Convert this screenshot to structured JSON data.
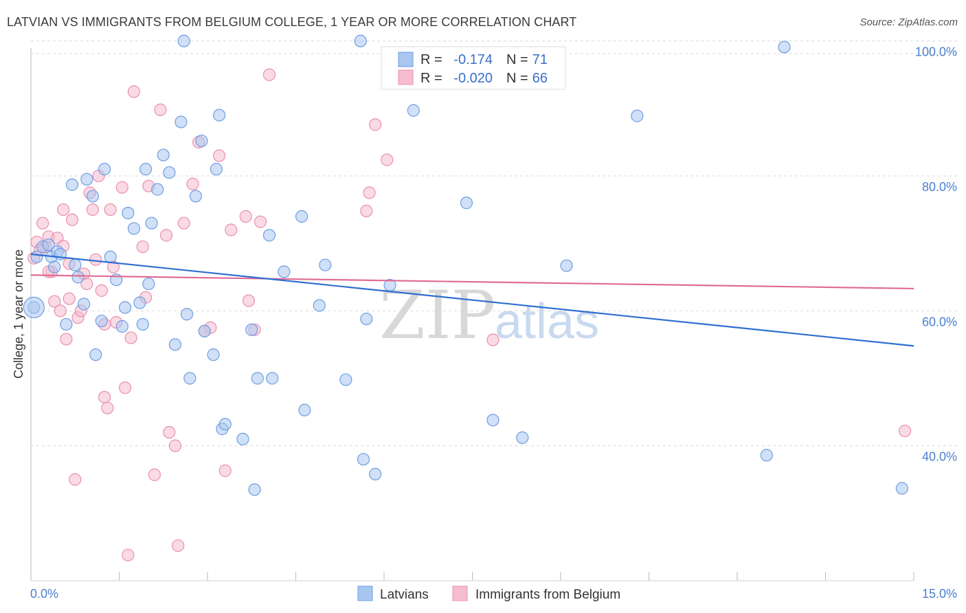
{
  "header": {
    "title": "LATVIAN VS IMMIGRANTS FROM BELGIUM COLLEGE, 1 YEAR OR MORE CORRELATION CHART",
    "source": "Source: ZipAtlas.com"
  },
  "watermark": {
    "part1": "ZIP",
    "part2": "atlas"
  },
  "colors": {
    "latvians_fill": "#a9c6f0",
    "latvians_stroke": "#6f9ee0",
    "latvians_line": "#2f6fd0",
    "belgium_fill": "#f6bcd0",
    "belgium_stroke": "#e98fae",
    "belgium_line": "#e06b95",
    "tick_text": "#4a7fd0"
  },
  "legend": {
    "rows": [
      {
        "r_label": "R =",
        "r_value": "-0.174",
        "n_label": "N =",
        "n_value": "71"
      },
      {
        "r_label": "R =",
        "r_value": "-0.020",
        "n_label": "N =",
        "n_value": "66"
      }
    ]
  },
  "bottom_legend": {
    "series1": "Latvians",
    "series2": "Immigrants from Belgium"
  },
  "chart_data": {
    "type": "scatter",
    "title": "LATVIAN VS IMMIGRANTS FROM BELGIUM COLLEGE, 1 YEAR OR MORE CORRELATION CHART",
    "xlabel": "",
    "ylabel": "College, 1 year or more",
    "xlim": [
      0,
      15
    ],
    "ylim": [
      20,
      102
    ],
    "x_tick_labels": [
      "0.0%",
      "15.0%"
    ],
    "y_ticks": [
      40,
      60,
      80,
      100
    ],
    "y_tick_labels": [
      "40.0%",
      "60.0%",
      "80.0%",
      "100.0%"
    ],
    "grid": "horizontal dashed",
    "legend_position": "top-center",
    "series": [
      {
        "name": "Latvians",
        "r": -0.174,
        "n": 71,
        "trend": {
          "x": [
            0,
            15
          ],
          "y": [
            68.4,
            54.8
          ]
        },
        "points": [
          [
            0.05,
            60.5
          ],
          [
            0.1,
            68.0
          ],
          [
            0.2,
            69.5
          ],
          [
            0.3,
            69.8
          ],
          [
            0.35,
            68.0
          ],
          [
            0.4,
            66.5
          ],
          [
            0.45,
            68.8
          ],
          [
            0.5,
            68.4
          ],
          [
            0.7,
            78.7
          ],
          [
            0.75,
            66.8
          ],
          [
            0.8,
            65.0
          ],
          [
            0.9,
            61.0
          ],
          [
            0.95,
            79.5
          ],
          [
            1.05,
            77.0
          ],
          [
            1.1,
            53.5
          ],
          [
            1.2,
            58.5
          ],
          [
            1.25,
            81.0
          ],
          [
            1.35,
            68.0
          ],
          [
            1.45,
            64.6
          ],
          [
            1.55,
            57.7
          ],
          [
            1.6,
            60.5
          ],
          [
            1.65,
            74.5
          ],
          [
            1.75,
            72.2
          ],
          [
            1.85,
            61.2
          ],
          [
            1.9,
            58.0
          ],
          [
            1.95,
            81.0
          ],
          [
            2.05,
            73.0
          ],
          [
            2.15,
            78.0
          ],
          [
            2.25,
            83.1
          ],
          [
            2.35,
            80.5
          ],
          [
            2.45,
            55.0
          ],
          [
            2.55,
            88.0
          ],
          [
            2.65,
            59.5
          ],
          [
            2.7,
            50.0
          ],
          [
            2.6,
            100.0
          ],
          [
            2.8,
            77.0
          ],
          [
            2.9,
            85.2
          ],
          [
            2.95,
            57.0
          ],
          [
            3.1,
            53.5
          ],
          [
            3.15,
            81.0
          ],
          [
            3.2,
            89.0
          ],
          [
            3.25,
            42.5
          ],
          [
            3.3,
            43.2
          ],
          [
            3.6,
            41.0
          ],
          [
            3.75,
            57.2
          ],
          [
            3.8,
            33.5
          ],
          [
            3.85,
            50.0
          ],
          [
            4.05,
            71.2
          ],
          [
            4.1,
            50.0
          ],
          [
            4.3,
            65.8
          ],
          [
            4.6,
            74.0
          ],
          [
            4.65,
            45.3
          ],
          [
            4.9,
            60.8
          ],
          [
            5.0,
            66.8
          ],
          [
            5.35,
            49.8
          ],
          [
            5.65,
            38.0
          ],
          [
            5.6,
            100.0
          ],
          [
            5.7,
            58.8
          ],
          [
            5.85,
            35.8
          ],
          [
            6.1,
            63.8
          ],
          [
            6.5,
            89.7
          ],
          [
            7.4,
            76.0
          ],
          [
            7.85,
            43.8
          ],
          [
            8.35,
            41.2
          ],
          [
            9.1,
            66.7
          ],
          [
            10.3,
            88.9
          ],
          [
            12.5,
            38.6
          ],
          [
            12.8,
            99.1
          ],
          [
            14.8,
            33.7
          ],
          [
            0.6,
            58.0
          ],
          [
            2.0,
            64.0
          ]
        ]
      },
      {
        "name": "Immigrants from Belgium",
        "r": -0.02,
        "n": 66,
        "trend": {
          "x": [
            0,
            15
          ],
          "y": [
            65.3,
            63.3
          ]
        },
        "points": [
          [
            0.05,
            67.8
          ],
          [
            0.1,
            70.2
          ],
          [
            0.2,
            73.0
          ],
          [
            0.25,
            69.5
          ],
          [
            0.3,
            71.0
          ],
          [
            0.35,
            65.8
          ],
          [
            0.4,
            61.4
          ],
          [
            0.45,
            70.8
          ],
          [
            0.5,
            60.0
          ],
          [
            0.55,
            75.0
          ],
          [
            0.6,
            55.8
          ],
          [
            0.65,
            61.8
          ],
          [
            0.7,
            73.5
          ],
          [
            0.75,
            35.0
          ],
          [
            0.8,
            59.0
          ],
          [
            0.85,
            60.0
          ],
          [
            0.9,
            65.5
          ],
          [
            0.95,
            64.0
          ],
          [
            1.0,
            77.5
          ],
          [
            1.05,
            75.0
          ],
          [
            1.1,
            67.6
          ],
          [
            1.15,
            80.0
          ],
          [
            1.2,
            63.0
          ],
          [
            1.25,
            47.2
          ],
          [
            1.3,
            45.6
          ],
          [
            1.35,
            75.0
          ],
          [
            1.4,
            66.5
          ],
          [
            1.55,
            78.3
          ],
          [
            1.6,
            48.6
          ],
          [
            1.65,
            23.8
          ],
          [
            1.7,
            56.0
          ],
          [
            1.75,
            92.5
          ],
          [
            1.9,
            69.5
          ],
          [
            1.95,
            62.0
          ],
          [
            2.0,
            78.5
          ],
          [
            2.1,
            35.7
          ],
          [
            2.2,
            89.8
          ],
          [
            2.3,
            71.2
          ],
          [
            2.35,
            42.0
          ],
          [
            2.45,
            40.0
          ],
          [
            2.5,
            25.2
          ],
          [
            2.6,
            73.0
          ],
          [
            2.75,
            78.8
          ],
          [
            2.85,
            85.0
          ],
          [
            3.05,
            57.5
          ],
          [
            3.2,
            83.0
          ],
          [
            3.3,
            36.3
          ],
          [
            3.4,
            72.0
          ],
          [
            3.65,
            74.0
          ],
          [
            3.7,
            61.5
          ],
          [
            3.8,
            57.2
          ],
          [
            3.9,
            73.2
          ],
          [
            4.05,
            95.0
          ],
          [
            5.7,
            74.8
          ],
          [
            5.75,
            77.5
          ],
          [
            5.85,
            87.6
          ],
          [
            6.05,
            82.4
          ],
          [
            7.85,
            55.7
          ],
          [
            14.85,
            42.2
          ],
          [
            0.15,
            69.0
          ],
          [
            0.55,
            69.6
          ],
          [
            1.45,
            58.3
          ],
          [
            0.65,
            67.0
          ],
          [
            1.25,
            58.0
          ],
          [
            2.95,
            57.0
          ],
          [
            0.3,
            65.8
          ]
        ]
      }
    ]
  }
}
